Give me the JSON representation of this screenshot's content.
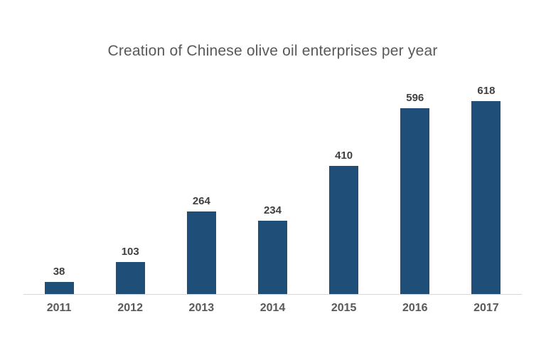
{
  "chart_data": {
    "type": "bar",
    "title": "Creation of Chinese olive oil enterprises per year",
    "categories": [
      "2011",
      "2012",
      "2013",
      "2014",
      "2015",
      "2016",
      "2017"
    ],
    "values": [
      38,
      103,
      264,
      234,
      410,
      596,
      618
    ],
    "xlabel": "",
    "ylabel": "",
    "ylim": [
      0,
      650
    ],
    "grid": false,
    "legend": false,
    "data_labels": true,
    "y_axis_visible": false,
    "colors": {
      "bar": "#1F4E79",
      "title_text": "#595959",
      "value_label_text": "#404040",
      "axis_label_text": "#595959",
      "axis_line": "#D9D9D9",
      "background": "#FFFFFF"
    }
  }
}
